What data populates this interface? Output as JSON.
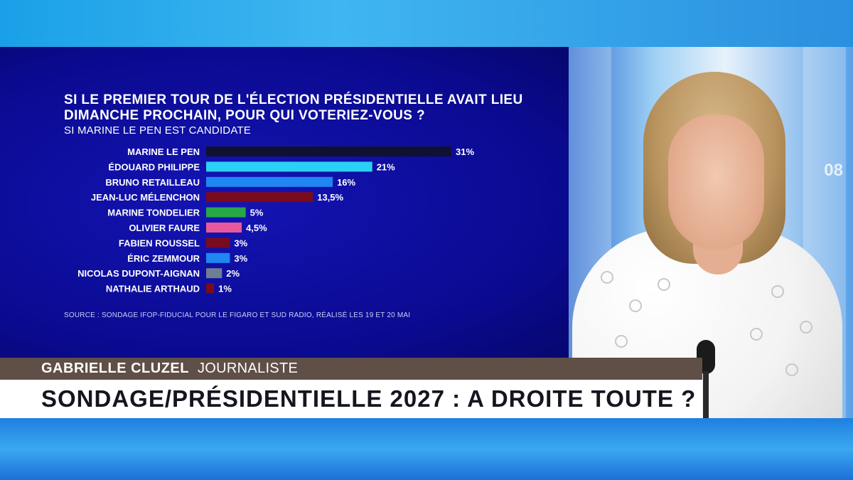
{
  "lower_third": {
    "name": "GABRIELLE CLUZEL",
    "role": "JOURNALISTE",
    "headline": "SONDAGE/PRÉSIDENTIELLE 2027 : A DROITE TOUTE ?"
  },
  "studio": {
    "screen_text": "08"
  },
  "chart_data": {
    "type": "bar",
    "orientation": "horizontal",
    "title": "SI LE PREMIER TOUR DE L'ÉLECTION PRÉSIDENTIELLE AVAIT LIEU DIMANCHE PROCHAIN, POUR QUI VOTERIEZ-VOUS ?",
    "subtitle": "SI MARINE LE PEN EST CANDIDATE",
    "source": "SOURCE : SONDAGE IFOP-FIDUCIAL POUR LE FIGARO ET SUD RADIO, RÉALISÉ LES 19 ET 20 MAI",
    "categories": [
      "MARINE LE PEN",
      "ÉDOUARD PHILIPPE",
      "BRUNO RETAILLEAU",
      "JEAN-LUC MÉLENCHON",
      "MARINE TONDELIER",
      "OLIVIER FAURE",
      "FABIEN ROUSSEL",
      "ÉRIC ZEMMOUR",
      "NICOLAS DUPONT-AIGNAN",
      "NATHALIE ARTHAUD"
    ],
    "values": [
      31,
      21,
      16,
      13.5,
      5,
      4.5,
      3,
      3,
      2,
      1
    ],
    "value_labels": [
      "31%",
      "21%",
      "16%",
      "13,5%",
      "5%",
      "4,5%",
      "3%",
      "3%",
      "2%",
      "1%"
    ],
    "colors": [
      "#0e1230",
      "#2ad0f5",
      "#1f86f2",
      "#7a0a1e",
      "#27a846",
      "#e8589c",
      "#7a0a1e",
      "#1f86f2",
      "#6d7f93",
      "#7a0a1e"
    ],
    "xlim": [
      0,
      31
    ],
    "grid": false,
    "legend": "none"
  }
}
